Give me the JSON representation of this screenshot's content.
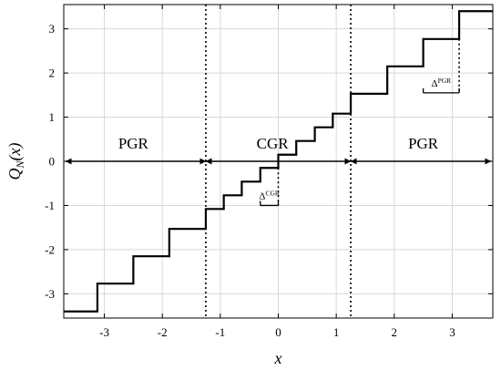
{
  "chart_data": {
    "type": "line",
    "title": "",
    "xlabel": "x",
    "ylabel": "Q_N(x)",
    "xlim": [
      -3.7,
      3.7
    ],
    "ylim": [
      -3.55,
      3.55
    ],
    "xticks": [
      -3,
      -2,
      -1,
      0,
      1,
      2,
      3
    ],
    "xtick_labels": [
      "-3",
      "-2",
      "-1",
      "0",
      "1",
      "2",
      "3"
    ],
    "yticks": [
      -3,
      -2,
      -1,
      0,
      1,
      2,
      3
    ],
    "ytick_labels": [
      "-3",
      "-2",
      "-1",
      "0",
      "1",
      "2",
      "3"
    ],
    "grid": true,
    "series": [
      {
        "step_points": [
          [
            -3.7,
            -3.4
          ],
          [
            -3.12,
            -3.4
          ],
          [
            -3.12,
            -2.77
          ],
          [
            -2.5,
            -2.77
          ],
          [
            -2.5,
            -2.15
          ],
          [
            -1.88,
            -2.15
          ],
          [
            -1.88,
            -1.53
          ],
          [
            -1.25,
            -1.53
          ],
          [
            -1.25,
            -1.08
          ],
          [
            -0.94,
            -1.08
          ],
          [
            -0.94,
            -0.77
          ],
          [
            -0.63,
            -0.77
          ],
          [
            -0.63,
            -0.46
          ],
          [
            -0.31,
            -0.46
          ],
          [
            -0.31,
            -0.15
          ],
          [
            0.0,
            -0.15
          ],
          [
            0.0,
            0.15
          ],
          [
            0.31,
            0.15
          ],
          [
            0.31,
            0.46
          ],
          [
            0.63,
            0.46
          ],
          [
            0.63,
            0.77
          ],
          [
            0.94,
            0.77
          ],
          [
            0.94,
            1.08
          ],
          [
            1.25,
            1.08
          ],
          [
            1.25,
            1.53
          ],
          [
            1.88,
            1.53
          ],
          [
            1.88,
            2.15
          ],
          [
            2.5,
            2.15
          ],
          [
            2.5,
            2.77
          ],
          [
            3.12,
            2.77
          ],
          [
            3.12,
            3.4
          ],
          [
            3.7,
            3.4
          ]
        ]
      }
    ],
    "boundaries": [
      -1.25,
      1.25
    ],
    "regions": [
      {
        "label": "PGR",
        "x_from": -3.7,
        "x_to": -1.25,
        "label_x": -2.5
      },
      {
        "label": "CGR",
        "x_from": -1.25,
        "x_to": 1.25,
        "label_x": -0.1
      },
      {
        "label": "PGR",
        "x_from": 1.25,
        "x_to": 3.7,
        "label_x": 2.5
      }
    ],
    "annotations": [
      {
        "base": "Δ",
        "sup": "CGR",
        "x_from": -0.31,
        "x_to": 0.0,
        "y": -1.0,
        "from_y": -0.15
      },
      {
        "base": "Δ",
        "sup": "PGR",
        "x_from": 2.5,
        "x_to": 3.12,
        "y": 1.55,
        "from_y": 2.77
      }
    ]
  }
}
